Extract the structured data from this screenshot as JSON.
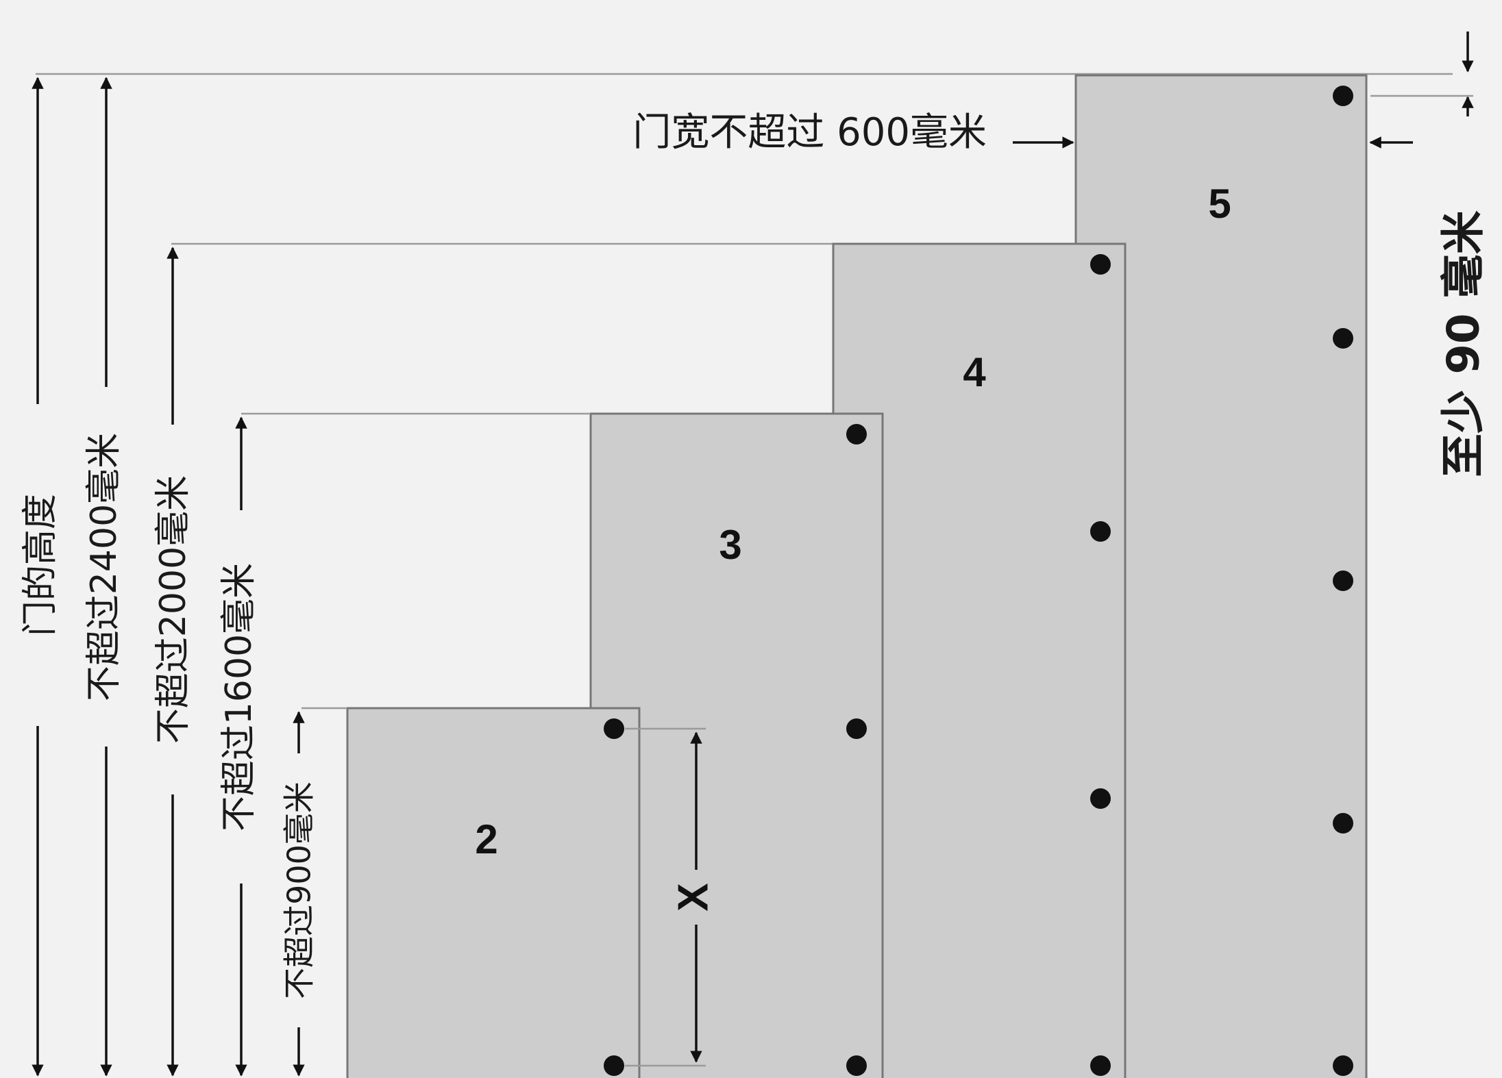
{
  "width_note": "门宽不超过 600毫米",
  "clearance_note": "至少 90 毫米",
  "dimensions": [
    {
      "id": "door-height",
      "label": "门的高度"
    },
    {
      "id": "max-2400",
      "label": "不超过2400毫米"
    },
    {
      "id": "max-2000",
      "label": "不超过2000毫米"
    },
    {
      "id": "max-1600",
      "label": "不超过1600毫米"
    },
    {
      "id": "max-900",
      "label": "不超过900毫米"
    }
  ],
  "doors": [
    {
      "label": "2",
      "hinge_count": 2
    },
    {
      "label": "3",
      "hinge_count": 3
    },
    {
      "label": "4",
      "hinge_count": 4
    },
    {
      "label": "5",
      "hinge_count": 5
    }
  ],
  "spacing_label": "X",
  "colors": {
    "background": "#f2f2f2",
    "door_fill": "#cdcdcd",
    "door_edge": "#777777",
    "hinge": "#111111",
    "guide_line": "#9a9a9a"
  }
}
